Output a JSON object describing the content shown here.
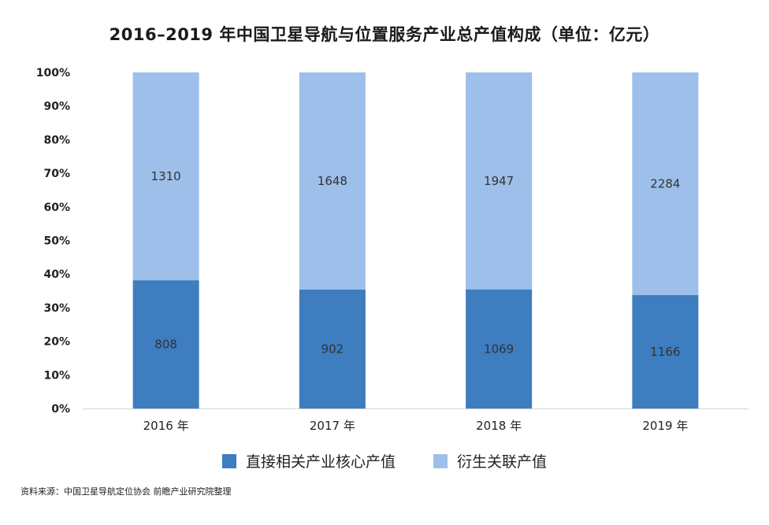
{
  "title": "2016–2019 年中国卫星导航与位置服务产业总产值构成（单位：亿元）",
  "source": "资料来源：中国卫星导航定位协会 前瞻产业研究院整理",
  "colors": {
    "core": "#3d7dc0",
    "derived": "#9dbfe9",
    "axis": "#d4d4d4"
  },
  "chart_data": {
    "type": "bar",
    "stacked": "percent",
    "title": "2016–2019 年中国卫星导航与位置服务产业总产值构成（单位：亿元）",
    "categories": [
      "2016 年",
      "2017 年",
      "2018 年",
      "2019 年"
    ],
    "series": [
      {
        "name": "直接相关产业核心产值",
        "values": [
          808,
          902,
          1069,
          1166
        ],
        "color": "#3d7dc0"
      },
      {
        "name": "衍生关联产值",
        "values": [
          1310,
          1648,
          1947,
          2284
        ],
        "color": "#9dbfe9"
      }
    ],
    "ylim": [
      0,
      100
    ],
    "yticks": [
      "0%",
      "10%",
      "20%",
      "30%",
      "40%",
      "50%",
      "60%",
      "70%",
      "80%",
      "90%",
      "100%"
    ],
    "xlabel": "",
    "ylabel": "",
    "legend": "bottom"
  }
}
